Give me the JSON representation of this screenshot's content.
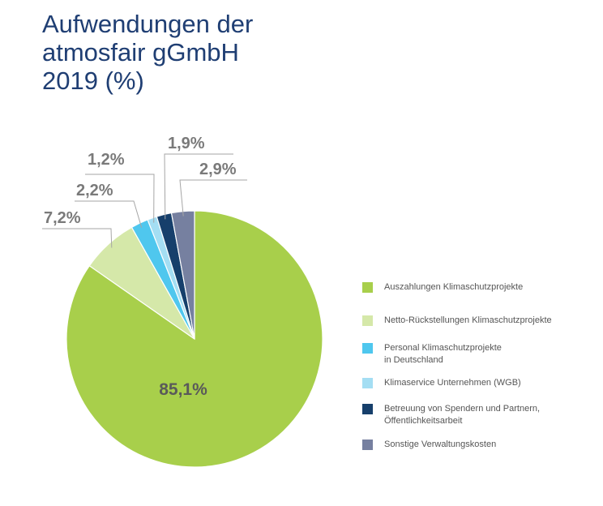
{
  "title_lines": [
    "Aufwendungen der",
    "atmosfair gGmbH",
    "2019 (%)"
  ],
  "chart_data": {
    "type": "pie",
    "start_angle_deg": 0,
    "direction": "clockwise",
    "slices": [
      {
        "label": "Auszahlungen Klimaschutzprojekte",
        "value": 85.1,
        "display": "85,1%",
        "color": "#a8cf4b"
      },
      {
        "label": "Netto-Rückstellungen Klimaschutzprojekte",
        "value": 7.2,
        "display": "7,2%",
        "color": "#d5e8a9"
      },
      {
        "label": "Personal Klimaschutzprojekte\nin Deutschland",
        "value": 2.2,
        "display": "2,2%",
        "color": "#4fc7ee"
      },
      {
        "label": "Klimaservice Unternehmen (WGB)",
        "value": 1.2,
        "display": "1,2%",
        "color": "#a4def3"
      },
      {
        "label": "Betreuung von Spendern und Partnern,\nÖffentlichkeitsarbeit",
        "value": 1.9,
        "display": "1,9%",
        "color": "#163f6b"
      },
      {
        "label": "Sonstige Verwaltungskosten",
        "value": 2.9,
        "display": "2,9%",
        "color": "#7680a0"
      }
    ],
    "legend_position": "right"
  }
}
